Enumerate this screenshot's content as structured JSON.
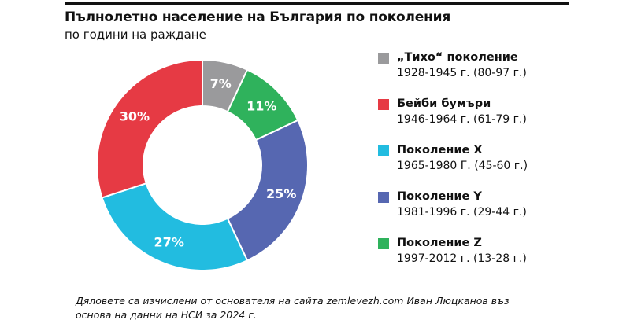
{
  "header": {
    "title": "Пълнолетно население на България по поколения",
    "subtitle": "по години на раждане"
  },
  "chart_data": {
    "type": "pie",
    "variant": "donut",
    "title": "Пълнолетно население на България по поколения",
    "subtitle": "по години на раждане",
    "unit": "%",
    "start": "top, clockwise",
    "legend_position": "right",
    "slices": [
      {
        "name": "„Тихо“ поколение",
        "range": "1928-1945 г. (80-97 г.)",
        "value": 7,
        "label": "7%",
        "color": "#9a9a9c"
      },
      {
        "name": "Поколение Z",
        "range": "1997-2012 г. (13-28 г.)",
        "value": 11,
        "label": "11%",
        "color": "#2fb25c"
      },
      {
        "name": "Поколение Y",
        "range": "1981-1996 г. (29-44 г.)",
        "value": 25,
        "label": "25%",
        "color": "#5667b1"
      },
      {
        "name": "Поколение X",
        "range": "1965-1980 Г. (45-60 г.)",
        "value": 27,
        "label": "27%",
        "color": "#22bce0"
      },
      {
        "name": "Бейби бумъри",
        "range": "1946-1964 г. (61-79 г.)",
        "value": 30,
        "label": "30%",
        "color": "#e63a44"
      }
    ],
    "legend_order": [
      0,
      4,
      3,
      2,
      1
    ]
  },
  "footnote": {
    "line1": "Дяловете са изчислени от основателя на сайта zemlevezh.com Иван Люцканов въз",
    "line2": "основа на данни  на НСИ за 2024 г."
  }
}
